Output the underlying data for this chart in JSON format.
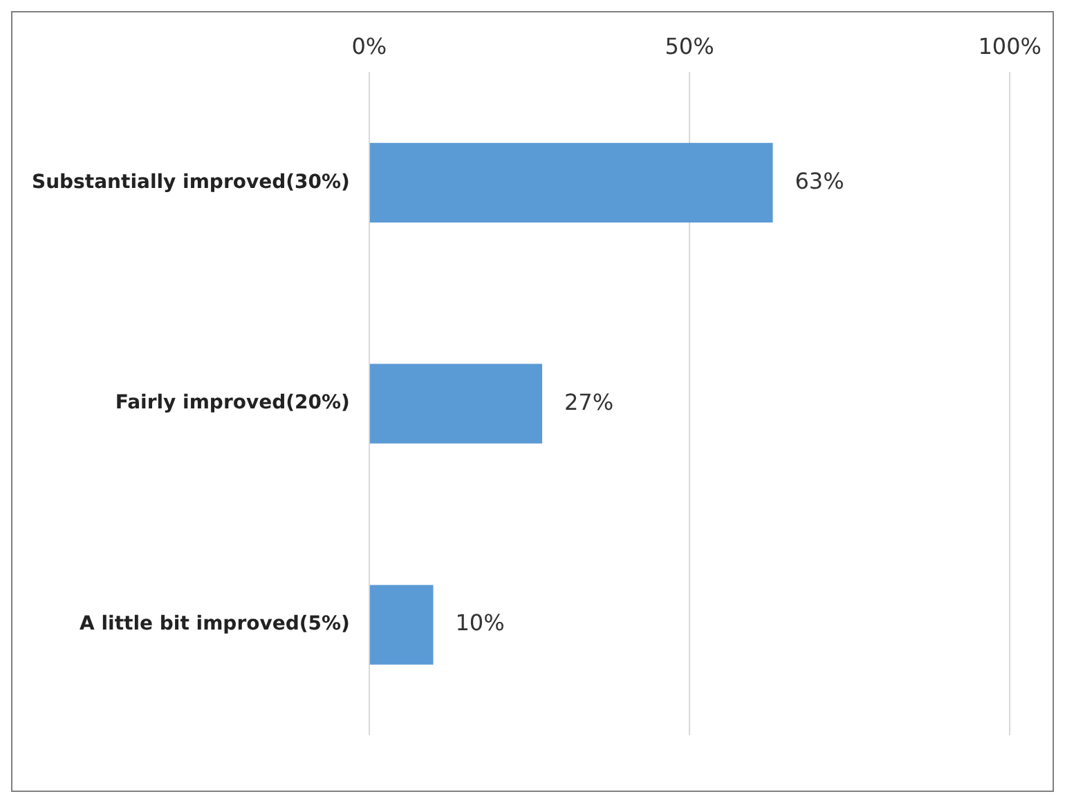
{
  "chart_data": {
    "type": "bar",
    "orientation": "horizontal",
    "categories": [
      "Substantially improved(30%)",
      "Fairly improved(20%)",
      "A little bit improved(5%)"
    ],
    "values": [
      63,
      27,
      10
    ],
    "color": "#5b9bd5",
    "value_labels": [
      "63%",
      "27%",
      "10%"
    ],
    "xlim": [
      0,
      100
    ],
    "xticks": [
      {
        "value": 0,
        "label": "0%"
      },
      {
        "value": 50,
        "label": "50%"
      },
      {
        "value": 100,
        "label": "100%"
      }
    ],
    "grid": "x",
    "legend": false
  }
}
